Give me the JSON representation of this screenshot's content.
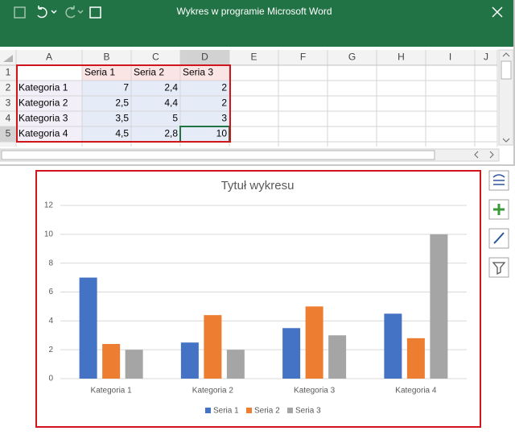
{
  "window": {
    "title": "Wykres w programie Microsoft Word"
  },
  "sheet": {
    "columns": [
      "A",
      "B",
      "C",
      "D",
      "E",
      "F",
      "G",
      "H",
      "I",
      "J"
    ],
    "rows": [
      1,
      2,
      3,
      4,
      5
    ],
    "cells": [
      [
        null,
        "Seria 1",
        "Seria 2",
        "Seria 3"
      ],
      [
        "Kategoria 1",
        "7",
        "2,4",
        "2"
      ],
      [
        "Kategoria 2",
        "2,5",
        "4,4",
        "2"
      ],
      [
        "Kategoria 3",
        "3,5",
        "5",
        "3"
      ],
      [
        "Kategoria 4",
        "4,5",
        "2,8",
        "10"
      ]
    ]
  },
  "chart_data": {
    "type": "bar",
    "title": "Tytuł wykresu",
    "categories": [
      "Kategoria 1",
      "Kategoria 2",
      "Kategoria 3",
      "Kategoria 4"
    ],
    "series": [
      {
        "name": "Seria 1",
        "color": "#4472c4",
        "values": [
          7,
          2.5,
          3.5,
          4.5
        ]
      },
      {
        "name": "Seria 2",
        "color": "#ed7d31",
        "values": [
          2.4,
          4.4,
          5,
          2.8
        ]
      },
      {
        "name": "Seria 3",
        "color": "#a5a5a5",
        "values": [
          2,
          2,
          3,
          10
        ]
      }
    ],
    "ylim": [
      0,
      12
    ],
    "yticks": [
      0,
      2,
      4,
      6,
      8,
      10,
      12
    ],
    "grid": true,
    "legend": "bottom"
  }
}
